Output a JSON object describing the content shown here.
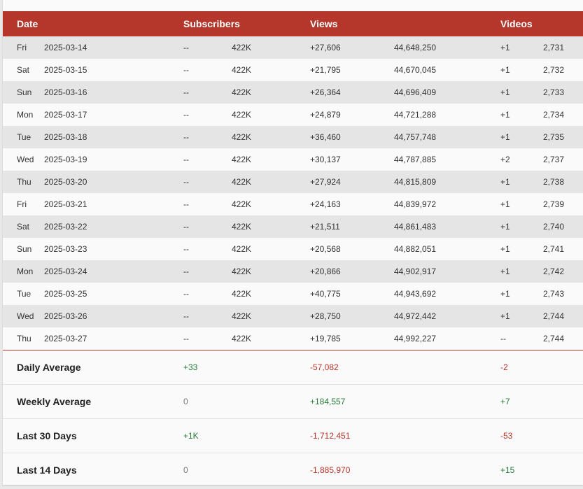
{
  "header": {
    "date": "Date",
    "subscribers": "Subscribers",
    "views": "Views",
    "videos": "Videos"
  },
  "rows": [
    {
      "day": "Fri",
      "date": "2025-03-14",
      "sub_change": "--",
      "subs": "422K",
      "views_change": "+27,606",
      "views": "44,648,250",
      "videos_change": "+1",
      "videos": "2,731"
    },
    {
      "day": "Sat",
      "date": "2025-03-15",
      "sub_change": "--",
      "subs": "422K",
      "views_change": "+21,795",
      "views": "44,670,045",
      "videos_change": "+1",
      "videos": "2,732"
    },
    {
      "day": "Sun",
      "date": "2025-03-16",
      "sub_change": "--",
      "subs": "422K",
      "views_change": "+26,364",
      "views": "44,696,409",
      "videos_change": "+1",
      "videos": "2,733"
    },
    {
      "day": "Mon",
      "date": "2025-03-17",
      "sub_change": "--",
      "subs": "422K",
      "views_change": "+24,879",
      "views": "44,721,288",
      "videos_change": "+1",
      "videos": "2,734"
    },
    {
      "day": "Tue",
      "date": "2025-03-18",
      "sub_change": "--",
      "subs": "422K",
      "views_change": "+36,460",
      "views": "44,757,748",
      "videos_change": "+1",
      "videos": "2,735"
    },
    {
      "day": "Wed",
      "date": "2025-03-19",
      "sub_change": "--",
      "subs": "422K",
      "views_change": "+30,137",
      "views": "44,787,885",
      "videos_change": "+2",
      "videos": "2,737"
    },
    {
      "day": "Thu",
      "date": "2025-03-20",
      "sub_change": "--",
      "subs": "422K",
      "views_change": "+27,924",
      "views": "44,815,809",
      "videos_change": "+1",
      "videos": "2,738"
    },
    {
      "day": "Fri",
      "date": "2025-03-21",
      "sub_change": "--",
      "subs": "422K",
      "views_change": "+24,163",
      "views": "44,839,972",
      "videos_change": "+1",
      "videos": "2,739"
    },
    {
      "day": "Sat",
      "date": "2025-03-22",
      "sub_change": "--",
      "subs": "422K",
      "views_change": "+21,511",
      "views": "44,861,483",
      "videos_change": "+1",
      "videos": "2,740"
    },
    {
      "day": "Sun",
      "date": "2025-03-23",
      "sub_change": "--",
      "subs": "422K",
      "views_change": "+20,568",
      "views": "44,882,051",
      "videos_change": "+1",
      "videos": "2,741"
    },
    {
      "day": "Mon",
      "date": "2025-03-24",
      "sub_change": "--",
      "subs": "422K",
      "views_change": "+20,866",
      "views": "44,902,917",
      "videos_change": "+1",
      "videos": "2,742"
    },
    {
      "day": "Tue",
      "date": "2025-03-25",
      "sub_change": "--",
      "subs": "422K",
      "views_change": "+40,775",
      "views": "44,943,692",
      "videos_change": "+1",
      "videos": "2,743"
    },
    {
      "day": "Wed",
      "date": "2025-03-26",
      "sub_change": "--",
      "subs": "422K",
      "views_change": "+28,750",
      "views": "44,972,442",
      "videos_change": "+1",
      "videos": "2,744"
    },
    {
      "day": "Thu",
      "date": "2025-03-27",
      "sub_change": "--",
      "subs": "422K",
      "views_change": "+19,785",
      "views": "44,992,227",
      "videos_change": "--",
      "videos": "2,744"
    }
  ],
  "summary": [
    {
      "label": "Daily Average",
      "subs": "+33",
      "views": "-57,082",
      "videos": "-2"
    },
    {
      "label": "Weekly Average",
      "subs": "0",
      "views": "+184,557",
      "videos": "+7"
    },
    {
      "label": "Last 30 Days",
      "subs": "+1K",
      "views": "-1,712,451",
      "videos": "-53"
    },
    {
      "label": "Last 14 Days",
      "subs": "0",
      "views": "-1,885,970",
      "videos": "+15"
    }
  ],
  "colors": {
    "header_bg": "#b5362b",
    "positive": "#2a7a3a",
    "negative": "#b5362b",
    "neutral": "#777777",
    "odd_row": "#e5e5e5",
    "even_row": "#fafafa"
  }
}
